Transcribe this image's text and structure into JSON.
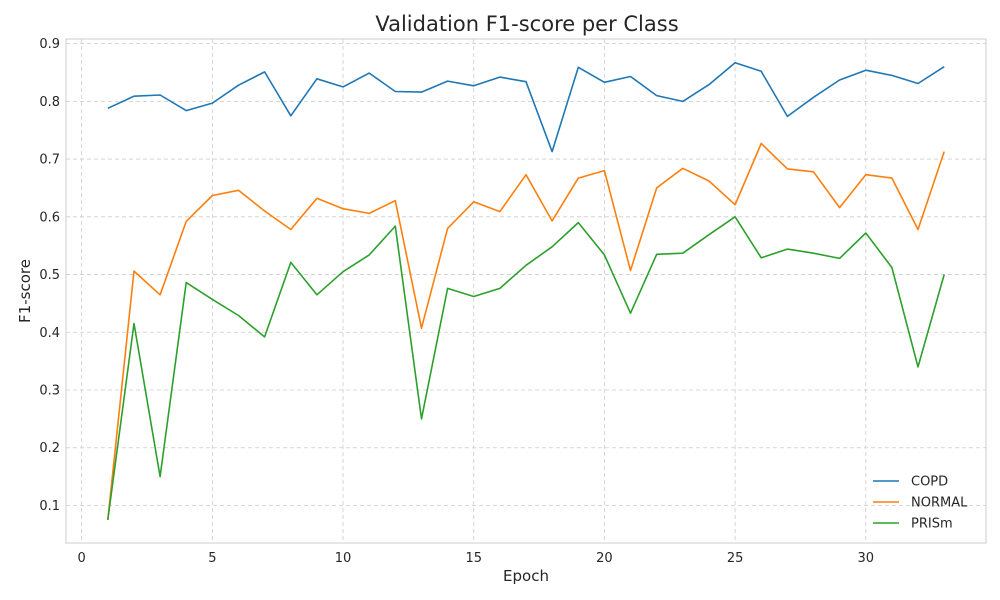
{
  "chart_data": {
    "type": "line",
    "title": "Validation F1-score per Class",
    "xlabel": "Epoch",
    "ylabel": "F1-score",
    "xlim": [
      -0.6,
      34.6
    ],
    "ylim": [
      0.035,
      0.908
    ],
    "x_ticks": [
      0,
      5,
      10,
      15,
      20,
      25,
      30
    ],
    "y_ticks": [
      0.1,
      0.2,
      0.3,
      0.4,
      0.5,
      0.6,
      0.7,
      0.8,
      0.9
    ],
    "grid": true,
    "legend_position": "lower-right",
    "x": [
      1,
      2,
      3,
      4,
      5,
      6,
      7,
      8,
      9,
      10,
      11,
      12,
      13,
      14,
      15,
      16,
      17,
      18,
      19,
      20,
      21,
      22,
      23,
      24,
      25,
      26,
      27,
      28,
      29,
      30,
      31,
      32,
      33
    ],
    "series": [
      {
        "name": "COPD",
        "color": "#1f77b4",
        "values": [
          0.788,
          0.809,
          0.811,
          0.784,
          0.797,
          0.828,
          0.851,
          0.775,
          0.839,
          0.825,
          0.849,
          0.817,
          0.816,
          0.835,
          0.827,
          0.842,
          0.834,
          0.713,
          0.859,
          0.833,
          0.843,
          0.81,
          0.8,
          0.829,
          0.867,
          0.852,
          0.774,
          0.807,
          0.837,
          0.854,
          0.845,
          0.831,
          0.86
        ]
      },
      {
        "name": "NORMAL",
        "color": "#ff7f0e",
        "values": [
          0.075,
          0.506,
          0.465,
          0.592,
          0.637,
          0.646,
          0.61,
          0.578,
          0.632,
          0.614,
          0.606,
          0.628,
          0.407,
          0.58,
          0.626,
          0.609,
          0.673,
          0.593,
          0.667,
          0.68,
          0.507,
          0.65,
          0.684,
          0.662,
          0.621,
          0.727,
          0.683,
          0.678,
          0.616,
          0.673,
          0.667,
          0.578,
          0.713
        ]
      },
      {
        "name": "PRISm",
        "color": "#2ca02c",
        "values": [
          0.075,
          0.415,
          0.15,
          0.486,
          0.457,
          0.429,
          0.392,
          0.521,
          0.465,
          0.505,
          0.534,
          0.584,
          0.25,
          0.476,
          0.462,
          0.476,
          0.516,
          0.548,
          0.59,
          0.534,
          0.433,
          0.535,
          0.537,
          0.569,
          0.6,
          0.529,
          0.544,
          0.537,
          0.528,
          0.572,
          0.512,
          0.34,
          0.5
        ]
      }
    ]
  }
}
